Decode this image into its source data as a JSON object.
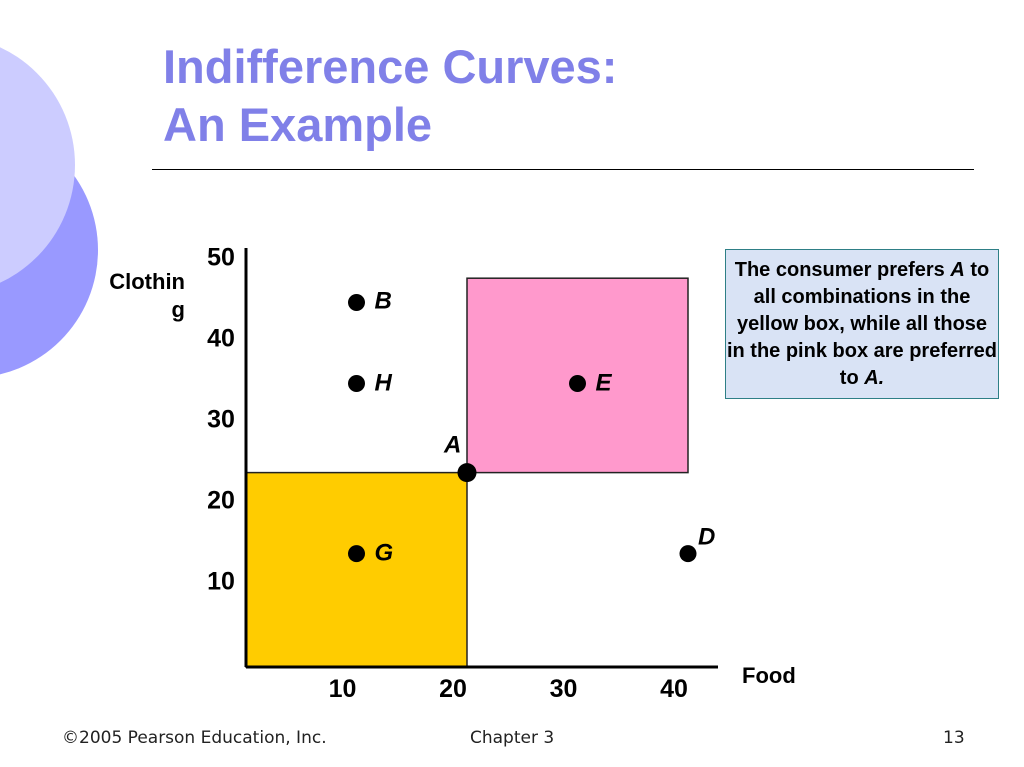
{
  "slide": {
    "title_line1": "Indifference Curves:",
    "title_line2": "An Example",
    "footer_left": "©2005 Pearson Education, Inc.",
    "footer_center": "Chapter 3",
    "footer_right": "13"
  },
  "callout": {
    "segments": [
      {
        "text": "The consumer prefers ",
        "italic": false
      },
      {
        "text": "A",
        "italic": true
      },
      {
        "text": " to all combinations in the yellow box, while all those in the pink box are preferred to ",
        "italic": false
      },
      {
        "text": "A.",
        "italic": true
      }
    ]
  },
  "colors": {
    "title": "#8080e8",
    "yellow_box": "#ffcc00",
    "pink_box": "#ff99cc",
    "callout_bg": "#d9e3f5",
    "callout_border": "#2e7f86",
    "deco_dark": "#9999ff",
    "deco_light": "#ccccff"
  },
  "chart_data": {
    "type": "scatter",
    "xlabel": "Food",
    "ylabel_lines": [
      "Clothin",
      "g"
    ],
    "x_ticks": [
      10,
      20,
      30,
      40
    ],
    "y_ticks": [
      10,
      20,
      30,
      40,
      50
    ],
    "xlim": [
      0,
      42
    ],
    "ylim": [
      0,
      50
    ],
    "points": [
      {
        "label": "A",
        "x": 20,
        "y": 24
      },
      {
        "label": "B",
        "x": 10,
        "y": 45
      },
      {
        "label": "H",
        "x": 10,
        "y": 35
      },
      {
        "label": "E",
        "x": 30,
        "y": 35
      },
      {
        "label": "G",
        "x": 10,
        "y": 14
      },
      {
        "label": "D",
        "x": 40,
        "y": 14
      }
    ],
    "regions": [
      {
        "name": "yellow-box",
        "x": [
          0,
          20
        ],
        "y": [
          0,
          24
        ],
        "color": "#ffcc00"
      },
      {
        "name": "pink-box",
        "x": [
          20,
          40
        ],
        "y": [
          24,
          48
        ],
        "color": "#ff99cc"
      }
    ]
  }
}
